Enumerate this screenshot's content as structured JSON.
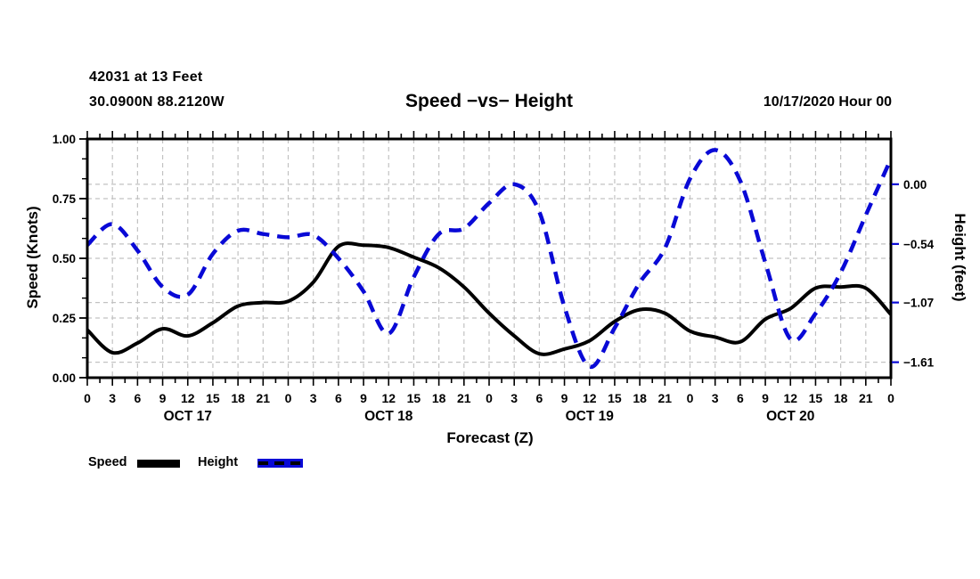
{
  "header": {
    "station_line": "42031 at 13 Feet",
    "coords_line": "30.0900N 88.2120W",
    "title": "Speed −vs− Height",
    "datetime_label": "10/17/2020 Hour 00"
  },
  "axes": {
    "left_title": "Speed (Knots)",
    "right_title": "Height (feet)",
    "x_title": "Forecast (Z)"
  },
  "legend": {
    "speed_label": "Speed",
    "height_label": "Height"
  },
  "colors": {
    "speed": "#000000",
    "height": "#0909d6",
    "grid": "#c2c2c2",
    "frame": "#000000"
  },
  "chart_data": {
    "type": "line",
    "title": "Speed −vs− Height",
    "xlabel": "Forecast (Z)",
    "x_unit": "hours",
    "xlim": [
      0,
      96
    ],
    "x_hours": [
      0,
      3,
      6,
      9,
      12,
      15,
      18,
      21,
      24,
      27,
      30,
      33,
      36,
      39,
      42,
      45,
      48,
      51,
      54,
      57,
      60,
      63,
      66,
      69,
      72,
      75,
      78,
      81,
      84,
      87,
      90,
      93,
      96
    ],
    "x_tick_labels": [
      "0",
      "3",
      "6",
      "9",
      "12",
      "15",
      "18",
      "21",
      "0",
      "3",
      "6",
      "9",
      "12",
      "15",
      "18",
      "21",
      "0",
      "3",
      "6",
      "9",
      "12",
      "15",
      "18",
      "21",
      "0",
      "3",
      "6",
      "9",
      "12",
      "15",
      "18",
      "21",
      "0"
    ],
    "day_labels": [
      "OCT 17",
      "OCT 18",
      "OCT 19",
      "OCT 20"
    ],
    "day_label_center_hours": [
      12,
      36,
      60,
      84
    ],
    "x_major_step_hours": 3,
    "x_minor_step_hours": 1.5,
    "grid": true,
    "legend_position": "bottom-left",
    "left_axis": {
      "label": "Speed (Knots)",
      "ylim": [
        0.0,
        1.0
      ],
      "tick_labels": [
        "1.00",
        "0.75",
        "0.50",
        "0.25",
        "0.00"
      ],
      "ticks": [
        1.0,
        0.75,
        0.5,
        0.25,
        0.0
      ],
      "minor_divisions_per_major": 3
    },
    "right_axis": {
      "label": "Height (feet)",
      "ylim": [
        -1.75,
        0.41
      ],
      "tick_labels": [
        "0.00",
        "−0.54",
        "−1.07",
        "−1.61"
      ],
      "ticks": [
        0.0,
        -0.54,
        -1.07,
        -1.61
      ]
    },
    "series": [
      {
        "name": "Speed",
        "axis": "left",
        "unit": "knots",
        "style": "solid",
        "color": "#000000",
        "values": [
          0.2,
          0.105,
          0.145,
          0.205,
          0.175,
          0.23,
          0.3,
          0.315,
          0.32,
          0.4,
          0.55,
          0.555,
          0.545,
          0.505,
          0.46,
          0.38,
          0.27,
          0.175,
          0.1,
          0.12,
          0.155,
          0.235,
          0.285,
          0.27,
          0.195,
          0.17,
          0.15,
          0.245,
          0.29,
          0.375,
          0.38,
          0.375,
          0.265
        ]
      },
      {
        "name": "Height",
        "axis": "right",
        "unit": "feet",
        "style": "dashed",
        "color": "#0909d6",
        "values": [
          -0.55,
          -0.36,
          -0.6,
          -0.93,
          -1.0,
          -0.63,
          -0.42,
          -0.45,
          -0.48,
          -0.46,
          -0.67,
          -0.97,
          -1.35,
          -0.84,
          -0.45,
          -0.4,
          -0.17,
          0.0,
          -0.25,
          -1.11,
          -1.65,
          -1.3,
          -0.89,
          -0.58,
          0.05,
          0.31,
          0.03,
          -0.71,
          -1.4,
          -1.17,
          -0.8,
          -0.28,
          0.23
        ]
      }
    ]
  }
}
